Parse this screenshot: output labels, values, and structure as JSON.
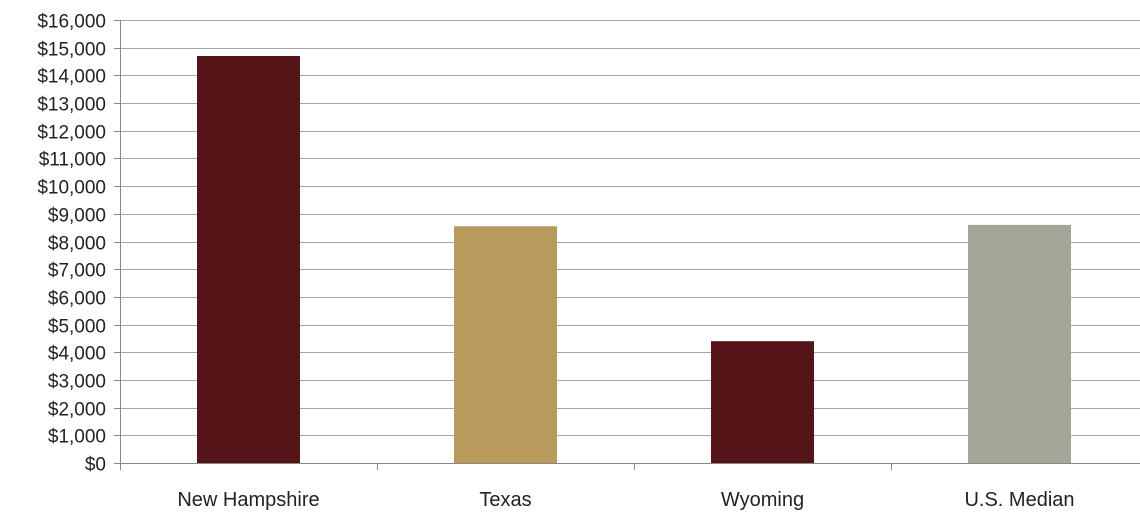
{
  "chart_data": {
    "type": "bar",
    "title": "",
    "xlabel": "",
    "ylabel": "",
    "categories": [
      "New Hampshire",
      "Texas",
      "Wyoming",
      "U.S. Median"
    ],
    "values": [
      14700,
      8550,
      4400,
      8600
    ],
    "colors": [
      "#541518",
      "#B89B5C",
      "#541518",
      "#A6A698"
    ],
    "ylim": [
      0,
      16000
    ],
    "ytick_step": 1000,
    "ytick_labels": [
      "$0",
      "$1,000",
      "$2,000",
      "$3,000",
      "$4,000",
      "$5,000",
      "$6,000",
      "$7,000",
      "$8,000",
      "$9,000",
      "$10,000",
      "$11,000",
      "$12,000",
      "$13,000",
      "$14,000",
      "$15,000",
      "$16,000"
    ],
    "grid": true,
    "gridline_color": "#A6A6A6",
    "axis_color": "#888888",
    "legend": "none"
  }
}
